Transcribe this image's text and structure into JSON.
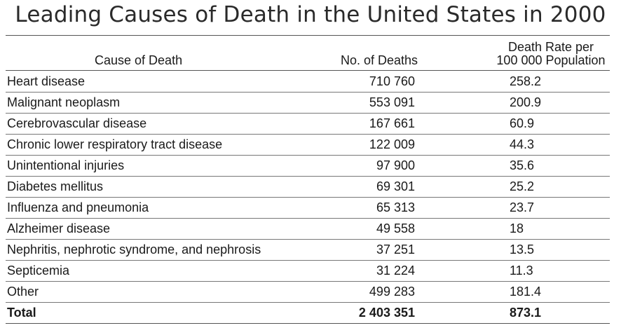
{
  "title": "Leading Causes of Death in the United States in 2000",
  "columns": {
    "cause": "Cause of Death",
    "deaths": "No. of Deaths",
    "rate_line1": "Death Rate per",
    "rate_line2": "100 000 Population"
  },
  "rows": [
    {
      "cause": "Heart disease",
      "deaths": "710 760",
      "rate": "258.2"
    },
    {
      "cause": "Malignant neoplasm",
      "deaths": "553 091",
      "rate": "200.9"
    },
    {
      "cause": "Cerebrovascular disease",
      "deaths": "167 661",
      "rate": "60.9"
    },
    {
      "cause": "Chronic lower respiratory tract disease",
      "deaths": "122 009",
      "rate": "44.3"
    },
    {
      "cause": "Unintentional injuries",
      "deaths": "97 900",
      "rate": "35.6"
    },
    {
      "cause": "Diabetes mellitus",
      "deaths": "69 301",
      "rate": "25.2"
    },
    {
      "cause": "Influenza and pneumonia",
      "deaths": "65 313",
      "rate": "23.7"
    },
    {
      "cause": "Alzheimer disease",
      "deaths": "49 558",
      "rate": "18"
    },
    {
      "cause": "Nephritis, nephrotic syndrome, and nephrosis",
      "deaths": "37 251",
      "rate": "13.5"
    },
    {
      "cause": "Septicemia",
      "deaths": "31 224",
      "rate": "11.3"
    },
    {
      "cause": "Other",
      "deaths": "499 283",
      "rate": "181.4"
    }
  ],
  "total": {
    "cause": "Total",
    "deaths": "2 403 351",
    "rate": "873.1"
  }
}
